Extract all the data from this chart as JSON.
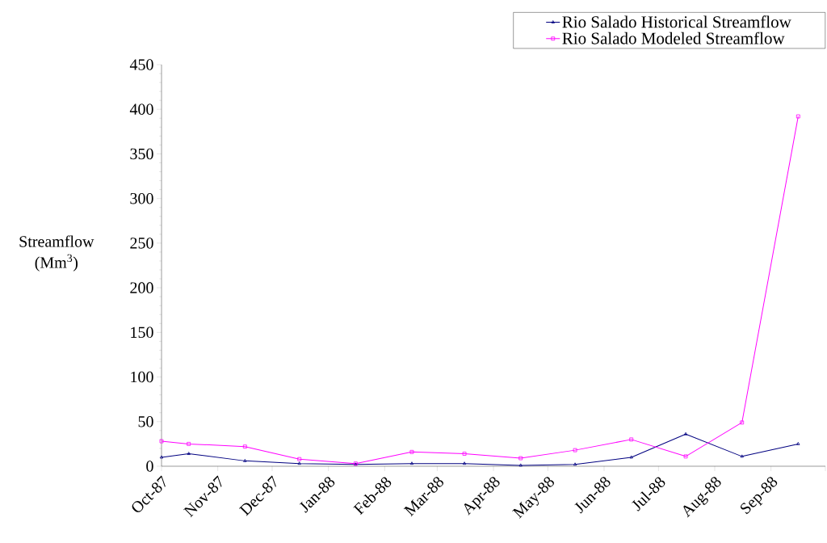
{
  "chart_data": {
    "type": "line",
    "ylabel": "Streamflow (Mm$^{3}$)",
    "x": [
      "1987-10-01",
      "1987-10-16",
      "1987-11-16",
      "1987-12-16",
      "1988-01-16",
      "1988-02-16",
      "1988-03-16",
      "1988-04-16",
      "1988-05-16",
      "1988-06-16",
      "1988-07-16",
      "1988-08-16",
      "1988-09-16"
    ],
    "series": [
      {
        "name": "Rio Salado Historical Streamflow",
        "color": "#000080",
        "marker": "triangle",
        "values": [
          10,
          14,
          6,
          3,
          2,
          3,
          3,
          1,
          2,
          10,
          36,
          11,
          25
        ]
      },
      {
        "name": "Rio Salado Modeled Streamflow",
        "color": "#ff00ff",
        "marker": "square",
        "values": [
          28,
          25,
          22,
          8,
          3,
          16,
          14,
          9,
          18,
          30,
          11,
          49,
          392
        ]
      }
    ],
    "xlim": [
      "1987-10-01",
      "1988-10-01"
    ],
    "xticks": [
      {
        "value": "1987-10-01",
        "label": "Oct-87"
      },
      {
        "value": "1987-11-01",
        "label": "Nov-87"
      },
      {
        "value": "1987-12-01",
        "label": "Dec-87"
      },
      {
        "value": "1988-01-01",
        "label": "Jan-88"
      },
      {
        "value": "1988-02-01",
        "label": "Feb-88"
      },
      {
        "value": "1988-03-01",
        "label": "Mar-88"
      },
      {
        "value": "1988-04-01",
        "label": "Apr-88"
      },
      {
        "value": "1988-05-01",
        "label": "May-88"
      },
      {
        "value": "1988-06-01",
        "label": "Jun-88"
      },
      {
        "value": "1988-07-01",
        "label": "Jul-88"
      },
      {
        "value": "1988-08-01",
        "label": "Aug-88"
      },
      {
        "value": "1988-09-01",
        "label": "Sep-88"
      },
      {
        "value": "1988-10-01",
        "label": null
      }
    ],
    "ylim": [
      0,
      450
    ],
    "yticks": [
      0,
      50,
      100,
      150,
      200,
      250,
      300,
      350,
      400,
      450
    ],
    "grid": false,
    "legend": "top right"
  }
}
